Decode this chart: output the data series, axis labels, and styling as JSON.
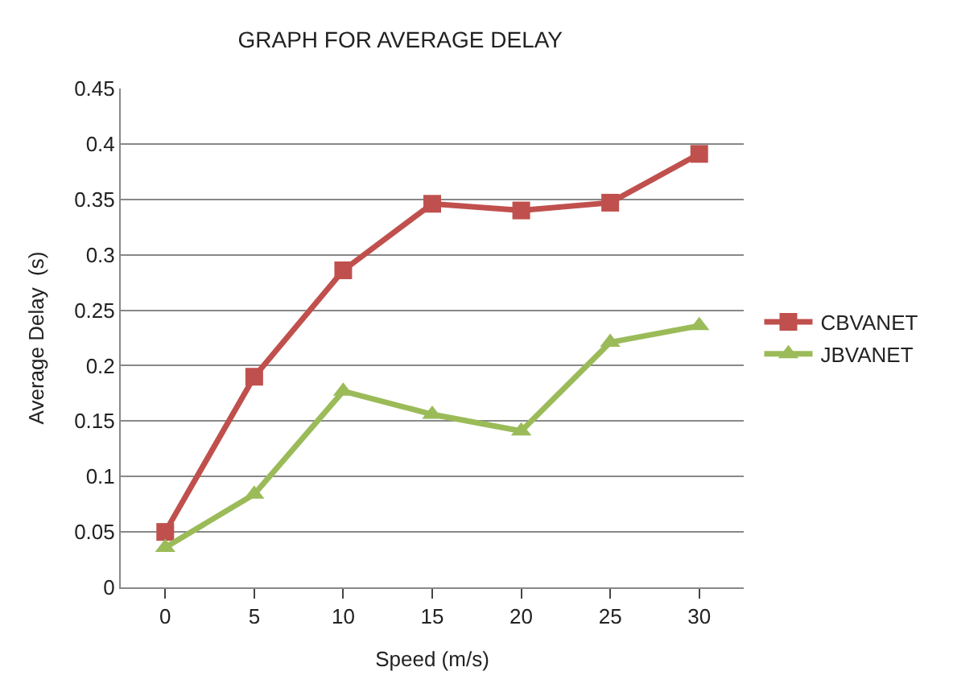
{
  "chart_data": {
    "type": "line",
    "title": "GRAPH FOR AVERAGE DELAY",
    "xlabel": "Speed (m/s)",
    "ylabel": "Average Delay  (s)",
    "categories": [
      "0",
      "5",
      "10",
      "15",
      "20",
      "25",
      "30"
    ],
    "series": [
      {
        "name": "CBVANET",
        "color": "#c0504d",
        "marker": "square",
        "values": [
          0.05,
          0.19,
          0.286,
          0.346,
          0.34,
          0.347,
          0.391
        ]
      },
      {
        "name": "JBVANET",
        "color": "#9bbb59",
        "marker": "triangle",
        "values": [
          0.036,
          0.084,
          0.177,
          0.156,
          0.141,
          0.221,
          0.236
        ]
      }
    ],
    "ylim": [
      0,
      0.45
    ],
    "yticks": [
      0,
      0.05,
      0.1,
      0.15,
      0.2,
      0.25,
      0.3,
      0.35,
      0.4,
      0.45
    ],
    "grid": "y",
    "legend": "right"
  }
}
